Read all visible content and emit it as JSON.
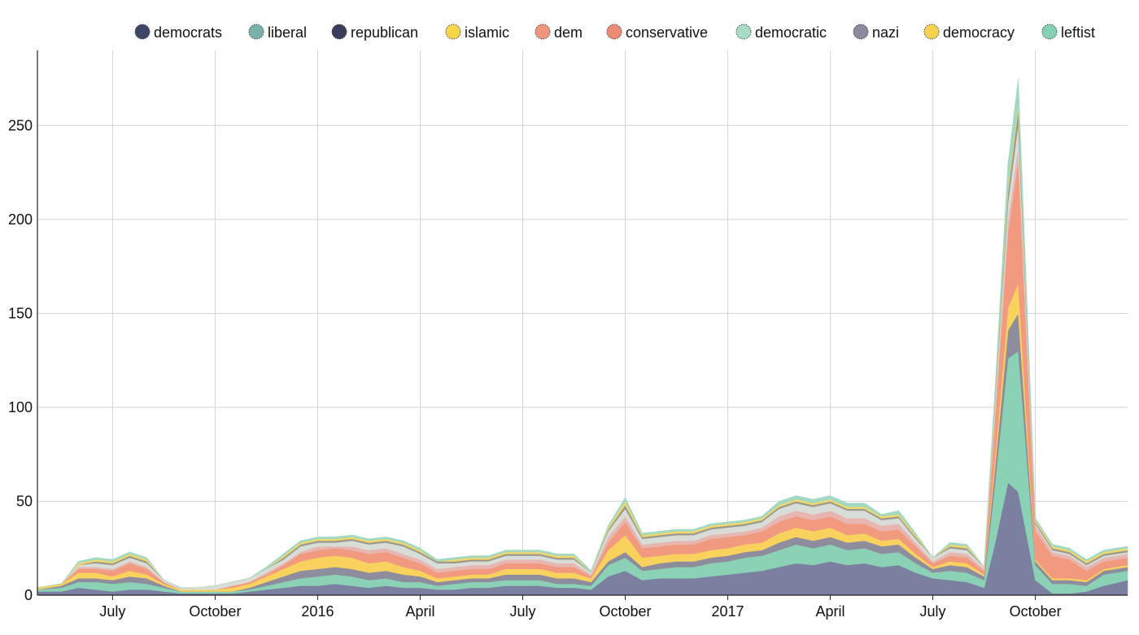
{
  "chart_data": {
    "type": "area",
    "stacked": true,
    "grid": true,
    "legend_position": "top",
    "ylim": [
      0,
      290
    ],
    "y_ticks": [
      0,
      50,
      100,
      150,
      200,
      250
    ],
    "x_ticks": [
      {
        "x": 2.0,
        "label": "July"
      },
      {
        "x": 5.0,
        "label": "October"
      },
      {
        "x": 8.0,
        "label": "2016"
      },
      {
        "x": 11.0,
        "label": "April"
      },
      {
        "x": 14.0,
        "label": "July"
      },
      {
        "x": 17.0,
        "label": "October"
      },
      {
        "x": 20.0,
        "label": "2017"
      },
      {
        "x": 23.0,
        "label": "April"
      },
      {
        "x": 26.0,
        "label": "July"
      },
      {
        "x": 29.0,
        "label": "October"
      }
    ],
    "x": [
      -0.2,
      0.5,
      1.0,
      1.5,
      2.0,
      2.5,
      3.0,
      3.5,
      4.0,
      4.5,
      5.0,
      5.5,
      6.0,
      6.5,
      7.0,
      7.5,
      8.0,
      8.5,
      9.0,
      9.5,
      10.0,
      10.5,
      11.0,
      11.5,
      12.0,
      12.5,
      13.0,
      13.5,
      14.0,
      14.5,
      15.0,
      15.5,
      16.0,
      16.5,
      17.0,
      17.5,
      18.0,
      18.5,
      19.0,
      19.5,
      20.0,
      20.5,
      21.0,
      21.5,
      22.0,
      22.5,
      23.0,
      23.5,
      24.0,
      24.5,
      25.0,
      25.5,
      26.0,
      26.5,
      27.0,
      27.5,
      27.8,
      28.2,
      28.5,
      29.0,
      29.5,
      30.0,
      30.5,
      31.0,
      31.7
    ],
    "series": [
      {
        "name": "democrats",
        "color": "#7b80a1",
        "values": [
          2,
          2,
          4,
          3,
          2,
          3,
          3,
          2,
          1,
          1,
          1,
          1,
          2,
          3,
          4,
          5,
          5,
          6,
          5,
          4,
          5,
          4,
          4,
          3,
          3,
          4,
          4,
          5,
          5,
          5,
          4,
          4,
          3,
          10,
          13,
          8,
          9,
          9,
          9,
          10,
          11,
          12,
          13,
          15,
          17,
          16,
          18,
          16,
          17,
          15,
          16,
          12,
          9,
          8,
          7,
          4,
          26,
          60,
          55,
          8,
          1,
          1,
          2,
          5,
          8
        ]
      },
      {
        "name": "liberal",
        "color": "#8bd1b5",
        "values": [
          1,
          2,
          3,
          4,
          4,
          4,
          3,
          2,
          1,
          1,
          1,
          1,
          1,
          2,
          3,
          4,
          5,
          5,
          5,
          4,
          4,
          3,
          3,
          2,
          3,
          3,
          3,
          3,
          3,
          3,
          2,
          2,
          2,
          6,
          7,
          5,
          5,
          6,
          6,
          7,
          7,
          8,
          8,
          9,
          10,
          9,
          9,
          8,
          8,
          7,
          7,
          5,
          3,
          5,
          5,
          4,
          30,
          66,
          75,
          8,
          5,
          5,
          3,
          6,
          5
        ]
      },
      {
        "name": "republican",
        "color": "#8d8d9e",
        "values": [
          0,
          1,
          2,
          2,
          2,
          3,
          3,
          1,
          0,
          0,
          0,
          0,
          1,
          2,
          3,
          4,
          4,
          4,
          4,
          4,
          4,
          4,
          3,
          2,
          2,
          2,
          2,
          3,
          3,
          3,
          3,
          3,
          2,
          2,
          3,
          2,
          3,
          3,
          3,
          3,
          3,
          3,
          3,
          4,
          4,
          4,
          4,
          4,
          4,
          4,
          4,
          3,
          2,
          3,
          3,
          2,
          8,
          15,
          20,
          2,
          2,
          2,
          2,
          2,
          2
        ]
      },
      {
        "name": "islamic",
        "color": "#f8d25d",
        "values": [
          1,
          1,
          3,
          3,
          2,
          3,
          2,
          1,
          1,
          1,
          1,
          2,
          2,
          3,
          4,
          5,
          6,
          6,
          6,
          5,
          5,
          4,
          3,
          2,
          2,
          2,
          2,
          3,
          3,
          3,
          3,
          3,
          2,
          6,
          9,
          5,
          4,
          4,
          4,
          4,
          4,
          4,
          4,
          5,
          5,
          5,
          5,
          4,
          4,
          3,
          3,
          2,
          1,
          2,
          2,
          1,
          5,
          12,
          16,
          1,
          1,
          1,
          1,
          1,
          1
        ]
      },
      {
        "name": "dem",
        "color": "#f19a80",
        "values": [
          0,
          0,
          2,
          2,
          3,
          4,
          3,
          1,
          0,
          0,
          0,
          1,
          1,
          1,
          2,
          4,
          4,
          4,
          4,
          5,
          5,
          5,
          4,
          3,
          3,
          3,
          3,
          3,
          3,
          3,
          3,
          3,
          1,
          4,
          7,
          5,
          5,
          5,
          5,
          6,
          6,
          5,
          6,
          6,
          6,
          6,
          6,
          6,
          5,
          5,
          5,
          4,
          2,
          3,
          3,
          2,
          20,
          40,
          65,
          15,
          12,
          10,
          5,
          4,
          4
        ]
      },
      {
        "name": "conservative",
        "color": "#e8b6b1",
        "values": [
          0,
          0,
          1,
          1,
          1,
          1,
          1,
          0,
          0,
          0,
          0,
          0,
          0,
          1,
          1,
          1,
          2,
          1,
          2,
          2,
          2,
          2,
          2,
          2,
          2,
          2,
          2,
          2,
          2,
          2,
          2,
          2,
          1,
          3,
          3,
          2,
          2,
          2,
          2,
          2,
          2,
          2,
          2,
          3,
          3,
          3,
          3,
          3,
          3,
          3,
          3,
          2,
          1,
          2,
          2,
          1,
          3,
          6,
          8,
          3,
          2,
          2,
          2,
          2,
          2
        ]
      },
      {
        "name": "democratic",
        "color": "#d8ddd7",
        "values": [
          0,
          0,
          1,
          2,
          2,
          2,
          2,
          1,
          1,
          1,
          2,
          2,
          2,
          2,
          2,
          3,
          2,
          2,
          3,
          3,
          3,
          4,
          3,
          3,
          2,
          2,
          2,
          2,
          2,
          2,
          2,
          2,
          1,
          3,
          4,
          3,
          3,
          3,
          3,
          3,
          3,
          3,
          3,
          4,
          4,
          4,
          4,
          4,
          4,
          3,
          3,
          2,
          2,
          2,
          2,
          1,
          5,
          10,
          12,
          1,
          1,
          1,
          1,
          1,
          1
        ]
      },
      {
        "name": "nazi",
        "color": "#9c9a8e",
        "values": [
          0,
          0,
          0,
          1,
          1,
          1,
          1,
          0,
          0,
          0,
          0,
          0,
          0,
          0,
          1,
          1,
          1,
          1,
          1,
          1,
          1,
          1,
          1,
          1,
          1,
          1,
          1,
          1,
          1,
          1,
          1,
          1,
          0,
          1,
          2,
          1,
          1,
          1,
          1,
          1,
          1,
          1,
          1,
          1,
          1,
          1,
          1,
          1,
          1,
          1,
          1,
          1,
          0,
          1,
          1,
          0,
          2,
          6,
          8,
          1,
          1,
          1,
          1,
          1,
          1
        ]
      },
      {
        "name": "democracy",
        "color": "#f3d86a",
        "values": [
          0,
          0,
          1,
          1,
          1,
          1,
          1,
          0,
          0,
          0,
          0,
          0,
          0,
          0,
          1,
          1,
          1,
          1,
          1,
          1,
          1,
          1,
          1,
          0,
          1,
          1,
          1,
          1,
          1,
          1,
          1,
          1,
          0,
          1,
          2,
          1,
          1,
          1,
          1,
          1,
          1,
          1,
          1,
          1,
          1,
          1,
          1,
          1,
          1,
          1,
          1,
          1,
          0,
          1,
          1,
          0,
          2,
          3,
          3,
          1,
          1,
          1,
          1,
          1,
          1
        ]
      },
      {
        "name": "leftist",
        "color": "#a3d9c2",
        "values": [
          0,
          0,
          1,
          1,
          1,
          1,
          1,
          0,
          0,
          0,
          0,
          0,
          0,
          1,
          1,
          1,
          1,
          1,
          1,
          1,
          1,
          1,
          1,
          1,
          1,
          1,
          1,
          1,
          1,
          1,
          1,
          1,
          1,
          1,
          2,
          1,
          1,
          1,
          1,
          1,
          1,
          1,
          1,
          2,
          2,
          2,
          2,
          2,
          2,
          1,
          2,
          1,
          0,
          1,
          1,
          0,
          3,
          12,
          13,
          1,
          1,
          1,
          1,
          1,
          1
        ]
      }
    ],
    "legend": [
      {
        "label": "democrats",
        "color": "#3e4666"
      },
      {
        "label": "liberal",
        "color": "#78b2ab"
      },
      {
        "label": "republican",
        "color": "#3b3b5c"
      },
      {
        "label": "islamic",
        "color": "#f9d54a"
      },
      {
        "label": "dem",
        "color": "#ef957c"
      },
      {
        "label": "conservative",
        "color": "#ed8a74"
      },
      {
        "label": "democratic",
        "color": "#a8dcc4"
      },
      {
        "label": "nazi",
        "color": "#8b8a9e"
      },
      {
        "label": "democracy",
        "color": "#f6d24f"
      },
      {
        "label": "leftist",
        "color": "#86d1b1"
      }
    ]
  }
}
